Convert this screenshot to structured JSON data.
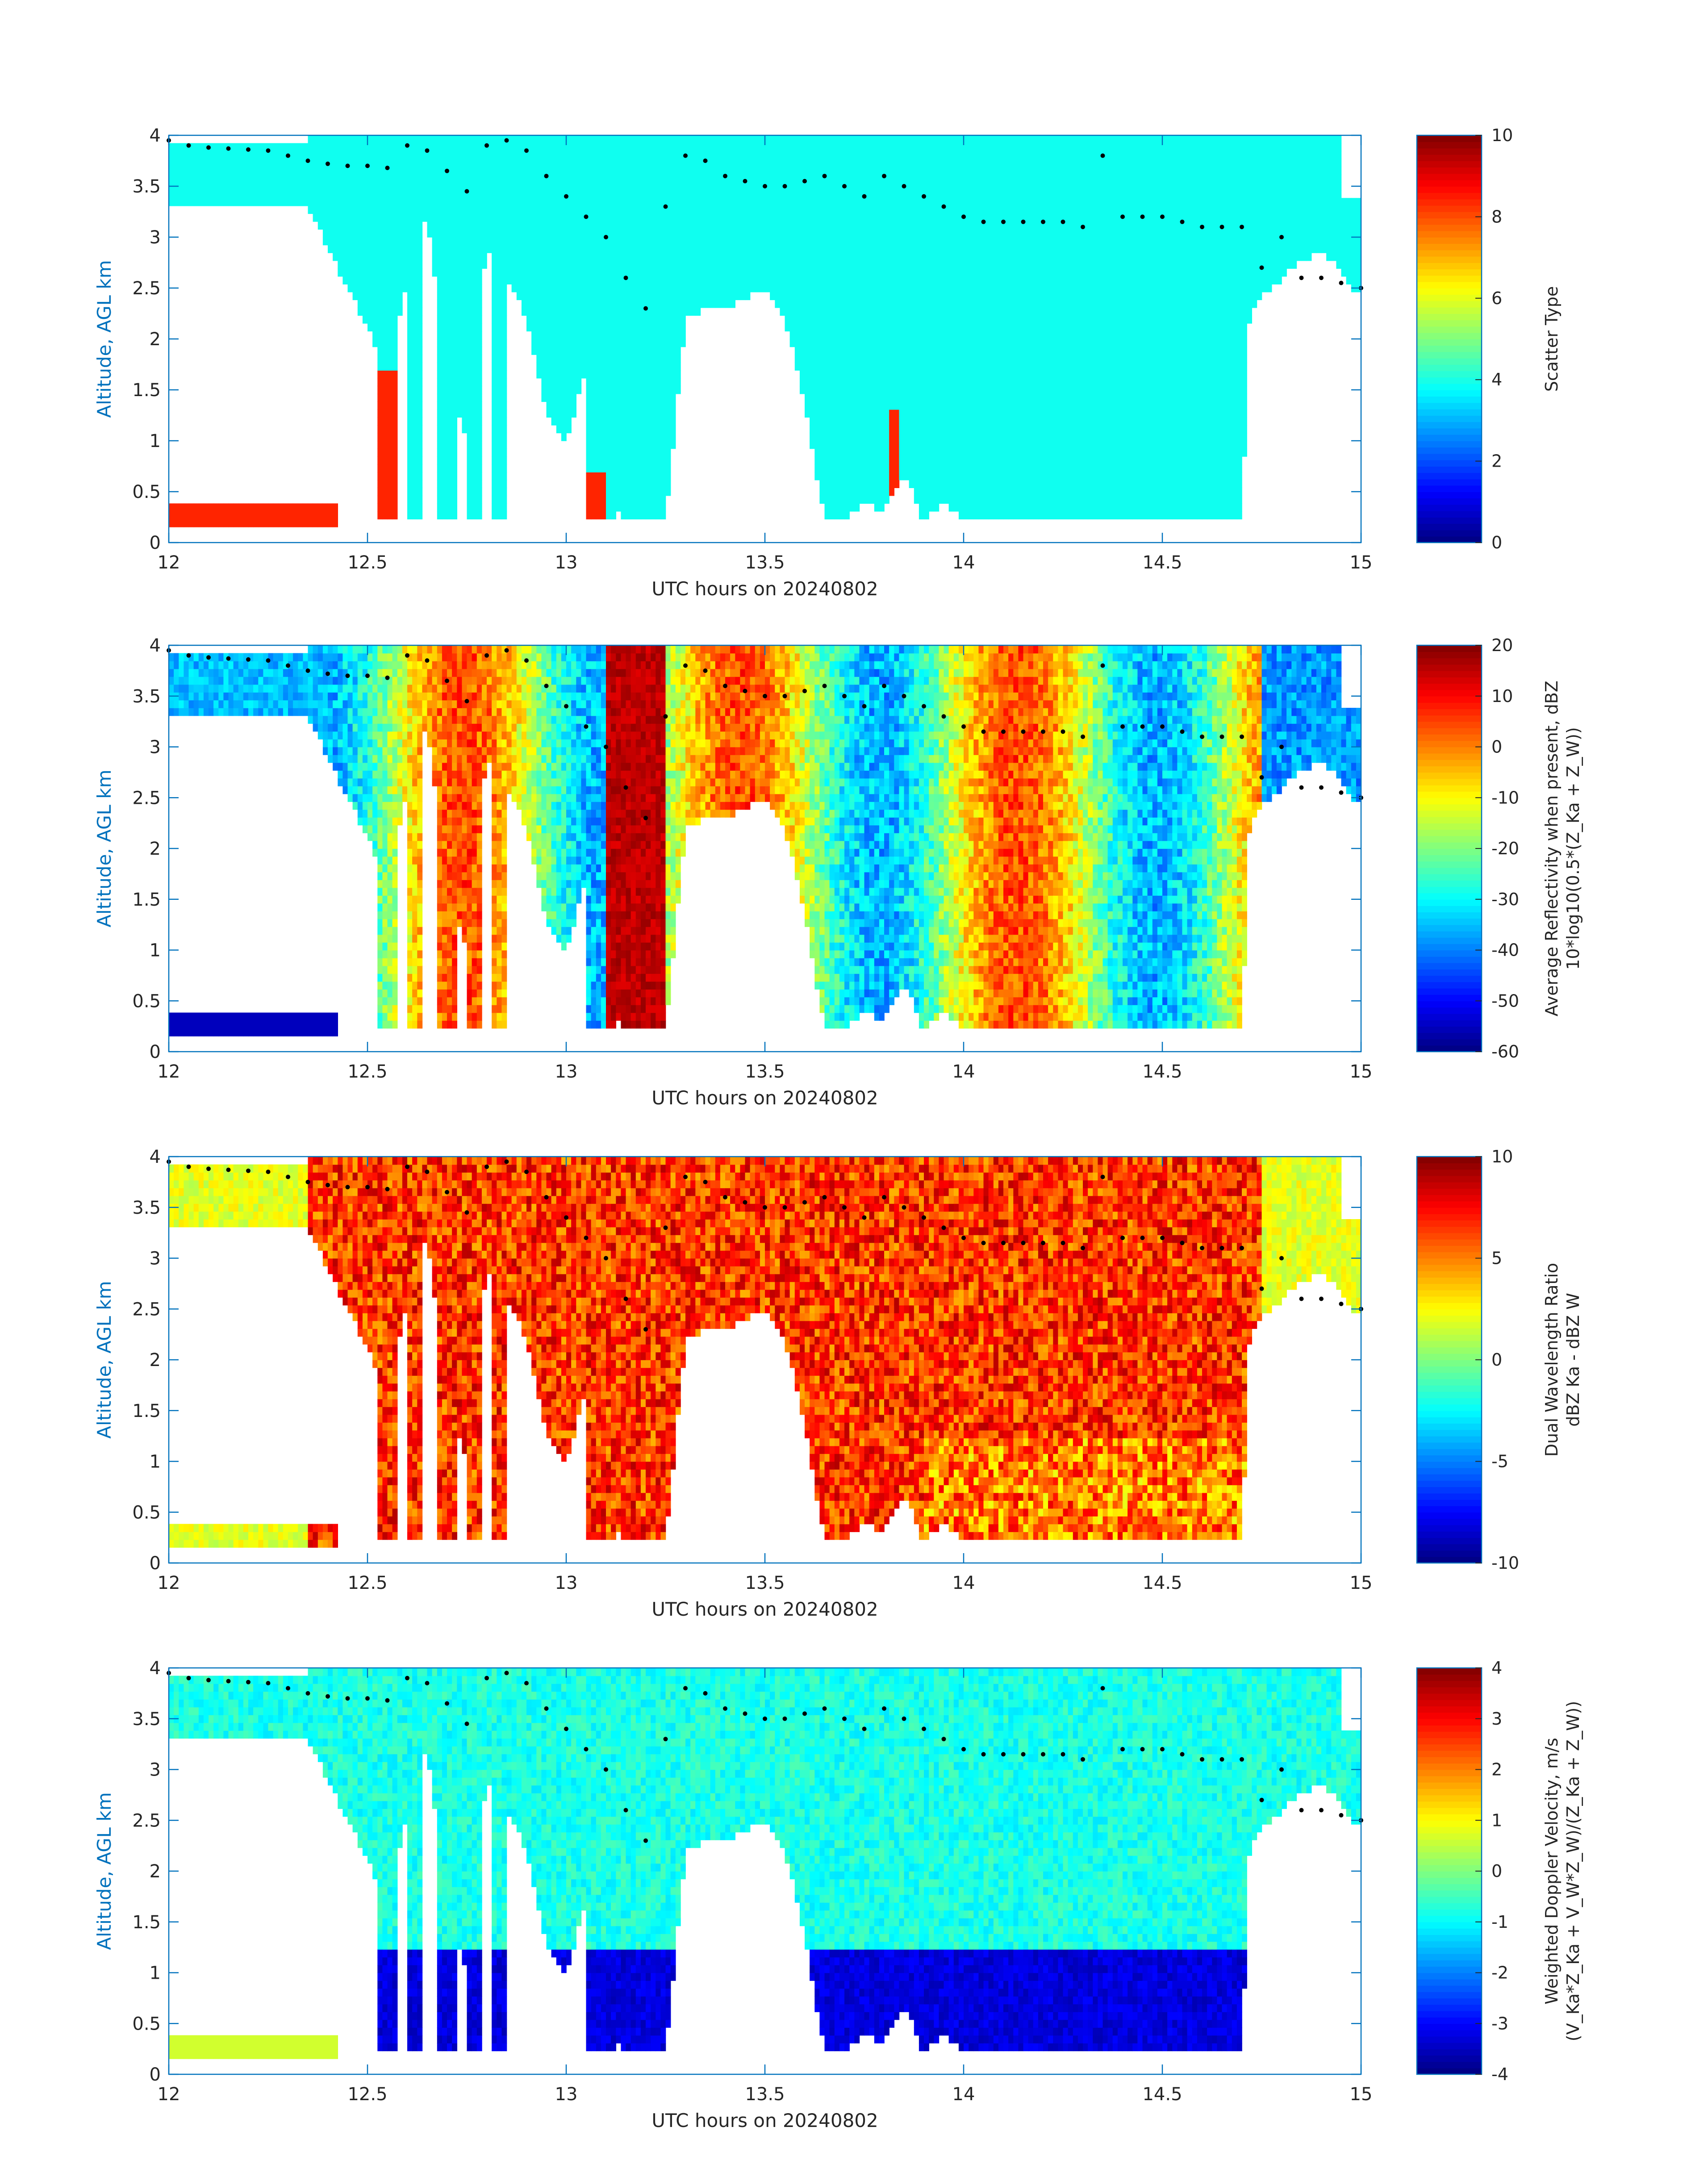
{
  "chart_data": [
    {
      "type": "heatmap",
      "xlabel": "UTC hours on 20240802",
      "ylabel": "Altitude, AGL km",
      "xlim": [
        12,
        15
      ],
      "ylim": [
        0,
        4
      ],
      "xticks": [
        "12",
        "12.5",
        "13",
        "13.5",
        "14",
        "14.5",
        "15"
      ],
      "yticks": [
        "0",
        "0.5",
        "1",
        "1.5",
        "2",
        "2.5",
        "3",
        "3.5",
        "4"
      ],
      "colorbar": {
        "label_lines": [
          "Scatter Type"
        ],
        "range": [
          0,
          10
        ],
        "ticks": [
          "0",
          "2",
          "4",
          "6",
          "8",
          "10"
        ]
      },
      "grid": false
    },
    {
      "type": "heatmap",
      "xlabel": "UTC hours on 20240802",
      "ylabel": "Altitude, AGL km",
      "xlim": [
        12,
        15
      ],
      "ylim": [
        0,
        4
      ],
      "xticks": [
        "12",
        "12.5",
        "13",
        "13.5",
        "14",
        "14.5",
        "15"
      ],
      "yticks": [
        "0",
        "0.5",
        "1",
        "1.5",
        "2",
        "2.5",
        "3",
        "3.5",
        "4"
      ],
      "colorbar": {
        "label_lines": [
          "Average Reflectivity when present, dBZ",
          "10*log10(0.5*(Z_Ka + Z_W))"
        ],
        "range": [
          -60,
          20
        ],
        "ticks": [
          "-60",
          "-50",
          "-40",
          "-30",
          "-20",
          "-10",
          "0",
          "10",
          "20"
        ]
      },
      "grid": false
    },
    {
      "type": "heatmap",
      "xlabel": "UTC hours on 20240802",
      "ylabel": "Altitude, AGL km",
      "xlim": [
        12,
        15
      ],
      "ylim": [
        0,
        4
      ],
      "xticks": [
        "12",
        "12.5",
        "13",
        "13.5",
        "14",
        "14.5",
        "15"
      ],
      "yticks": [
        "0",
        "0.5",
        "1",
        "1.5",
        "2",
        "2.5",
        "3",
        "3.5",
        "4"
      ],
      "colorbar": {
        "label_lines": [
          "Dual Wavelength Ratio",
          "dBZ Ka - dBZ W"
        ],
        "range": [
          -10,
          10
        ],
        "ticks": [
          "-10",
          "-5",
          "0",
          "5",
          "10"
        ]
      },
      "grid": false
    },
    {
      "type": "heatmap",
      "xlabel": "UTC hours on 20240802",
      "ylabel": "Altitude, AGL km",
      "xlim": [
        12,
        15
      ],
      "ylim": [
        0,
        4
      ],
      "xticks": [
        "12",
        "12.5",
        "13",
        "13.5",
        "14",
        "14.5",
        "15"
      ],
      "yticks": [
        "0",
        "0.5",
        "1",
        "1.5",
        "2",
        "2.5",
        "3",
        "3.5",
        "4"
      ],
      "colorbar": {
        "label_lines": [
          "Weighted Doppler Velocity, m/s",
          "(V_Ka*Z_Ka + V_W*Z_W)/(Z_Ka + Z_W))"
        ],
        "range": [
          -4,
          4
        ],
        "ticks": [
          "-4",
          "-3",
          "-2",
          "-1",
          "0",
          "1",
          "2",
          "3",
          "4"
        ]
      },
      "grid": false
    }
  ],
  "cloud_top_markers": {
    "hours": [
      12.0,
      12.05,
      12.1,
      12.15,
      12.2,
      12.25,
      12.3,
      12.35,
      12.4,
      12.45,
      12.5,
      12.55,
      12.6,
      12.65,
      12.7,
      12.75,
      12.8,
      12.85,
      12.9,
      12.95,
      13.0,
      13.05,
      13.1,
      13.15,
      13.2,
      13.25,
      13.3,
      13.35,
      13.4,
      13.45,
      13.5,
      13.55,
      13.6,
      13.65,
      13.7,
      13.75,
      13.8,
      13.85,
      13.9,
      13.95,
      14.0,
      14.05,
      14.1,
      14.15,
      14.2,
      14.25,
      14.3,
      14.35,
      14.4,
      14.45,
      14.5,
      14.55,
      14.6,
      14.65,
      14.7,
      14.75,
      14.8,
      14.85,
      14.9,
      14.95,
      15.0
    ],
    "altitude_km": [
      3.95,
      3.9,
      3.88,
      3.87,
      3.86,
      3.85,
      3.8,
      3.75,
      3.72,
      3.7,
      3.7,
      3.68,
      3.9,
      3.85,
      3.65,
      3.45,
      3.9,
      3.95,
      3.85,
      3.6,
      3.4,
      3.2,
      3.0,
      2.6,
      2.3,
      3.3,
      3.8,
      3.75,
      3.6,
      3.55,
      3.5,
      3.5,
      3.55,
      3.6,
      3.5,
      3.4,
      3.6,
      3.5,
      3.4,
      3.3,
      3.2,
      3.15,
      3.15,
      3.15,
      3.15,
      3.15,
      3.1,
      3.8,
      3.2,
      3.2,
      3.2,
      3.15,
      3.1,
      3.1,
      3.1,
      2.7,
      3.0,
      2.6,
      2.6,
      2.55,
      2.5
    ]
  }
}
